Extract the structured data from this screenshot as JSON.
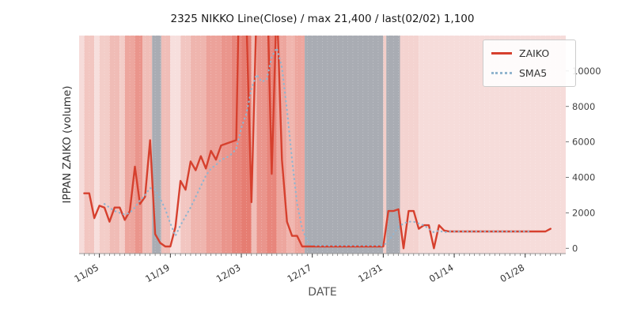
{
  "chart_data": {
    "type": "line",
    "title": "2325 NIKKO Line(Close) / max 21,400 / last(02/02) 1,100",
    "xlabel": "DATE",
    "ylabel": "IPPAN ZAIKO (volume)",
    "max_value": 21400,
    "last_point": {
      "date": "02/02",
      "value": 1100
    },
    "ylim": [
      -300,
      12000
    ],
    "yticks": [
      0,
      2000,
      4000,
      6000,
      8000,
      10000
    ],
    "x_start_day": -1,
    "x_end_day": 95,
    "xticks": [
      {
        "day": 3,
        "label": "11/05"
      },
      {
        "day": 17,
        "label": "11/19"
      },
      {
        "day": 31,
        "label": "12/03"
      },
      {
        "day": 45,
        "label": "12/17"
      },
      {
        "day": 59,
        "label": "12/31"
      },
      {
        "day": 73,
        "label": "01/14"
      },
      {
        "day": 87,
        "label": "01/28"
      }
    ],
    "legend_position": "upper right",
    "series": [
      {
        "name": "ZAIKO",
        "color": "#d6402e",
        "style": "solid",
        "start_day": 0,
        "values": [
          3100,
          3100,
          1700,
          2400,
          2300,
          1500,
          2300,
          2300,
          1600,
          2100,
          4600,
          2500,
          2900,
          6100,
          800,
          300,
          100,
          100,
          1200,
          3800,
          3300,
          4900,
          4400,
          5200,
          4500,
          5500,
          5000,
          5800,
          5900,
          6000,
          6100,
          21400,
          13000,
          2600,
          13500,
          21000,
          16000,
          4200,
          14000,
          5000,
          1500,
          700,
          700,
          100,
          100,
          100,
          100,
          100,
          100,
          100,
          100,
          100,
          100,
          100,
          100,
          100,
          100,
          100,
          100,
          100,
          2100,
          2100,
          2200,
          0,
          2100,
          2100,
          1100,
          1300,
          1300,
          0,
          1300,
          1000,
          950,
          950,
          950,
          950,
          950,
          950,
          950,
          950,
          950,
          950,
          950,
          950,
          950,
          950,
          950,
          950,
          950,
          950,
          950,
          950,
          1100
        ]
      },
      {
        "name": "SMA5",
        "color": "#92b5cf",
        "style": "dotted",
        "start_day": 4,
        "values": [
          2500,
          2300,
          2100,
          2000,
          1900,
          2000,
          2300,
          2700,
          3000,
          3400,
          3300,
          2800,
          2200,
          1400,
          700,
          1300,
          1800,
          2300,
          2900,
          3500,
          4100,
          4500,
          4700,
          5000,
          5100,
          5300,
          5600,
          6800,
          7600,
          9000,
          9800,
          9400,
          9500,
          10800,
          11300,
          10200,
          7800,
          5000,
          2500,
          1100,
          400,
          200,
          150,
          150,
          150,
          150,
          150,
          150,
          150,
          150,
          150,
          150,
          150,
          150,
          150,
          150,
          400,
          800,
          1200,
          1400,
          1500,
          1500,
          1400,
          1300,
          1100,
          900,
          1000,
          900,
          950,
          950,
          950,
          950,
          950,
          950,
          950,
          950,
          950,
          950,
          950,
          950,
          950,
          950,
          950,
          950,
          950
        ]
      }
    ],
    "background_bands": [
      {
        "start": -1,
        "end": 0,
        "color": "#f6dcda"
      },
      {
        "start": 0,
        "end": 2,
        "color": "#f2c6c1"
      },
      {
        "start": 2,
        "end": 3,
        "color": "#f7dfdd"
      },
      {
        "start": 3,
        "end": 5,
        "color": "#f3cdc8"
      },
      {
        "start": 5,
        "end": 7,
        "color": "#f0bcb6"
      },
      {
        "start": 7,
        "end": 8,
        "color": "#f3cdc8"
      },
      {
        "start": 8,
        "end": 10,
        "color": "#eda69e"
      },
      {
        "start": 10,
        "end": 11.5,
        "color": "#ea958c"
      },
      {
        "start": 11.5,
        "end": 13.4,
        "color": "#f0beb8"
      },
      {
        "start": 13.4,
        "end": 15.2,
        "color": "#a9acb3"
      },
      {
        "start": 15.2,
        "end": 17,
        "color": "#f0beb8"
      },
      {
        "start": 17,
        "end": 19,
        "color": "#f7dfdd"
      },
      {
        "start": 19,
        "end": 21,
        "color": "#f2c6c1"
      },
      {
        "start": 21,
        "end": 24,
        "color": "#efb5ae"
      },
      {
        "start": 24,
        "end": 27,
        "color": "#eca29a"
      },
      {
        "start": 27,
        "end": 29,
        "color": "#ea958c"
      },
      {
        "start": 29,
        "end": 31,
        "color": "#e8867c"
      },
      {
        "start": 31,
        "end": 33,
        "color": "#e67d72"
      },
      {
        "start": 33,
        "end": 34,
        "color": "#f0beb8"
      },
      {
        "start": 34,
        "end": 36,
        "color": "#ea958c"
      },
      {
        "start": 36,
        "end": 38,
        "color": "#e8867c"
      },
      {
        "start": 38,
        "end": 40,
        "color": "#eda69e"
      },
      {
        "start": 40,
        "end": 41.5,
        "color": "#f0b5ae"
      },
      {
        "start": 41.5,
        "end": 43.5,
        "color": "#eda69e"
      },
      {
        "start": 43.5,
        "end": 59,
        "color": "#a9acb3"
      },
      {
        "start": 59,
        "end": 59.6,
        "color": "#f3cdc8"
      },
      {
        "start": 59.6,
        "end": 62.3,
        "color": "#a9acb3"
      },
      {
        "start": 62.3,
        "end": 66,
        "color": "#f4d3d0"
      },
      {
        "start": 66,
        "end": 95,
        "color": "#f6dcda"
      }
    ],
    "grid": false
  }
}
